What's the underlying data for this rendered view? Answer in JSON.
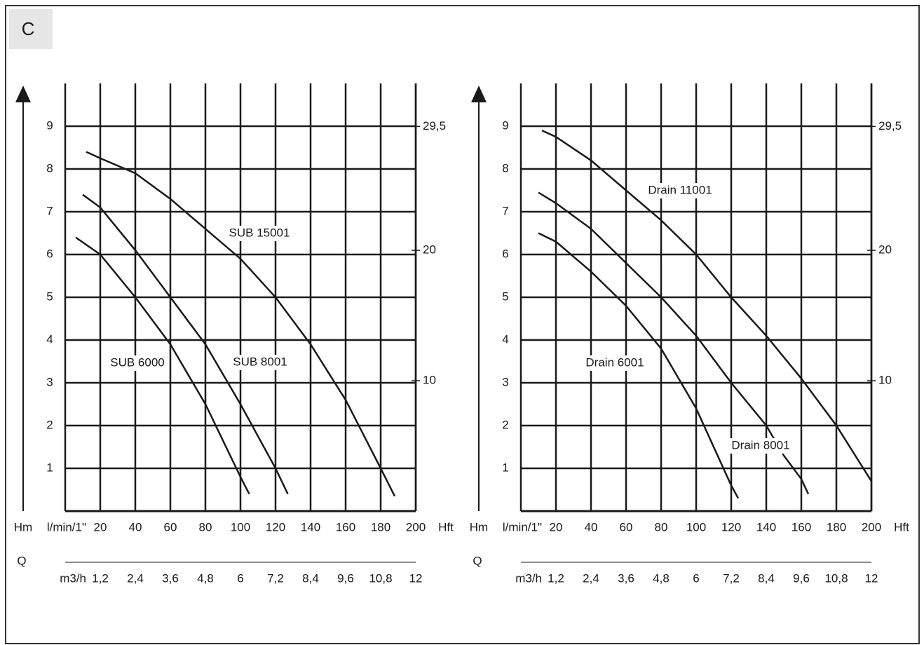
{
  "panel_label": "C",
  "chart_data": [
    {
      "type": "line",
      "y_label": "Hm",
      "x_label": "l/min/1\"",
      "y2_label": "Hft",
      "x_title": "Q",
      "x2_label": "m3/h",
      "xlim": [
        0,
        200
      ],
      "xticks": [
        20,
        40,
        60,
        80,
        100,
        120,
        140,
        160,
        180,
        200
      ],
      "ylim": [
        0,
        10
      ],
      "yticks": [
        1,
        2,
        3,
        4,
        5,
        6,
        7,
        8,
        9
      ],
      "y2lim": [
        0,
        32.8
      ],
      "y2ticks": [
        10,
        20,
        {
          "value": 29.5,
          "label": "29,5"
        }
      ],
      "x2lim": [
        0,
        12
      ],
      "x2ticks": [
        {
          "value": 1.2,
          "label": "1,2"
        },
        {
          "value": 2.4,
          "label": "2,4"
        },
        {
          "value": 3.6,
          "label": "3,6"
        },
        {
          "value": 4.8,
          "label": "4,8"
        },
        6,
        {
          "value": 7.2,
          "label": "7,2"
        },
        {
          "value": 8.4,
          "label": "8,4"
        },
        {
          "value": 9.6,
          "label": "9,6"
        },
        {
          "value": 10.8,
          "label": "10,8"
        },
        12
      ],
      "grid": true,
      "series": [
        {
          "name": "SUB 15001",
          "color": "#1a1a1a",
          "x": [
            12,
            20,
            40,
            60,
            80,
            100,
            120,
            140,
            160,
            180,
            188
          ],
          "values": [
            8.4,
            8.25,
            7.9,
            7.3,
            6.6,
            5.9,
            5.0,
            3.9,
            2.6,
            1.0,
            0.35
          ]
        },
        {
          "name": "SUB 6000",
          "color": "#1a1a1a",
          "x": [
            6,
            20,
            40,
            60,
            80,
            100,
            105
          ],
          "values": [
            6.4,
            6.0,
            5.0,
            3.9,
            2.5,
            0.8,
            0.4
          ]
        },
        {
          "name": "SUB 8001",
          "color": "#1a1a1a",
          "x": [
            10,
            20,
            40,
            60,
            80,
            100,
            120,
            127
          ],
          "values": [
            7.4,
            7.1,
            6.1,
            5.0,
            3.9,
            2.5,
            1.0,
            0.4
          ]
        }
      ]
    },
    {
      "type": "line",
      "y_label": "Hm",
      "x_label": "l/min/1\"",
      "y2_label": "Hft",
      "x_title": "Q",
      "x2_label": "m3/h",
      "xlim": [
        0,
        200
      ],
      "xticks": [
        20,
        40,
        60,
        80,
        100,
        120,
        140,
        160,
        180,
        200
      ],
      "ylim": [
        0,
        10
      ],
      "yticks": [
        1,
        2,
        3,
        4,
        5,
        6,
        7,
        8,
        9
      ],
      "y2lim": [
        0,
        32.8
      ],
      "y2ticks": [
        10,
        20,
        {
          "value": 29.5,
          "label": "29,5"
        }
      ],
      "x2lim": [
        0,
        12
      ],
      "x2ticks": [
        {
          "value": 1.2,
          "label": "1,2"
        },
        {
          "value": 2.4,
          "label": "2,4"
        },
        {
          "value": 3.6,
          "label": "3,6"
        },
        {
          "value": 4.8,
          "label": "4,8"
        },
        6,
        {
          "value": 7.2,
          "label": "7,2"
        },
        {
          "value": 8.4,
          "label": "8,4"
        },
        {
          "value": 9.6,
          "label": "9,6"
        },
        {
          "value": 10.8,
          "label": "10,8"
        },
        12
      ],
      "grid": true,
      "series": [
        {
          "name": "Drain 11001",
          "color": "#1a1a1a",
          "x": [
            12,
            20,
            40,
            60,
            80,
            100,
            120,
            140,
            160,
            180,
            200
          ],
          "values": [
            8.9,
            8.75,
            8.2,
            7.5,
            6.8,
            6.0,
            5.0,
            4.1,
            3.1,
            2.0,
            0.7
          ]
        },
        {
          "name": "Drain 6001",
          "color": "#1a1a1a",
          "x": [
            10,
            20,
            40,
            60,
            80,
            100,
            110,
            120,
            124
          ],
          "values": [
            6.5,
            6.3,
            5.6,
            4.8,
            3.8,
            2.4,
            1.5,
            0.6,
            0.3
          ]
        },
        {
          "name": "Drain 8001",
          "color": "#1a1a1a",
          "x": [
            10,
            20,
            40,
            60,
            80,
            100,
            120,
            140,
            150,
            160,
            164
          ],
          "values": [
            7.45,
            7.2,
            6.6,
            5.8,
            5.0,
            4.1,
            3.0,
            2.0,
            1.3,
            0.75,
            0.4
          ]
        }
      ]
    }
  ]
}
